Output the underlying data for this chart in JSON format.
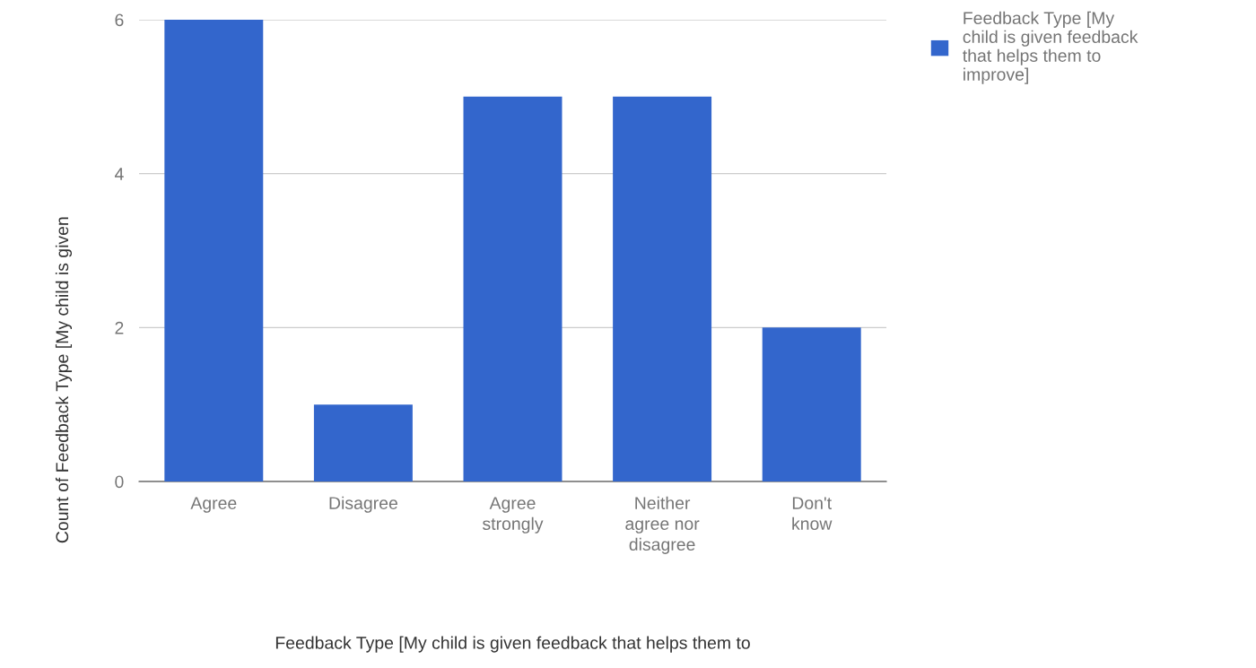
{
  "chart_data": {
    "type": "bar",
    "xlabel": "Feedback Type [My child is given feedback that helps them to",
    "ylabel": "Count of Feedback Type [My child is given",
    "categories": [
      "Agree",
      "Disagree",
      "Agree\nstrongly",
      "Neither\nagree nor\ndisagree",
      "Don't\nknow"
    ],
    "series": [
      {
        "name": "Feedback Type [My\nchild is given feedback\nthat helps them to\nimprove]",
        "color": "#3366cc",
        "values": [
          6,
          1,
          5,
          5,
          2
        ]
      }
    ],
    "ylim": [
      0,
      6
    ],
    "yticks": [
      0,
      2,
      4,
      6
    ],
    "grid": "y",
    "legend": "top right"
  }
}
